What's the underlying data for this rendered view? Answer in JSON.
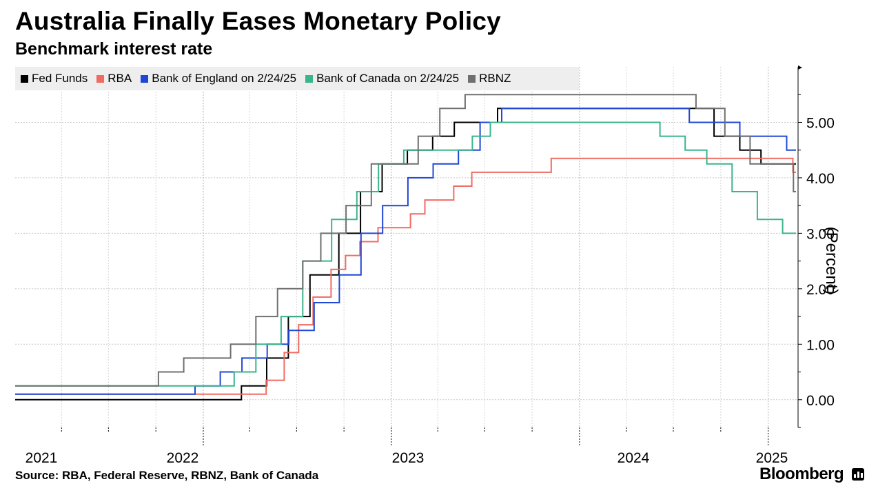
{
  "header": {
    "title": "Australia Finally Eases Monetary Policy",
    "subtitle": "Benchmark interest rate"
  },
  "footer": {
    "source": "Source: RBA, Federal Reserve, RBNZ, Bank of Canada",
    "brand": "Bloomberg",
    "brand_icon": "bloomberg-chart-icon"
  },
  "chart_data": {
    "type": "line",
    "line_style": "step",
    "title": "Australia Finally Eases Monetary Policy",
    "subtitle": "Benchmark interest rate",
    "ylabel": "(Percent)",
    "xlabel": "",
    "xlim": [
      "2021-01-01",
      "2025-02-28"
    ],
    "ylim": [
      -0.5,
      6.0
    ],
    "y_ticks": [
      0,
      1,
      2,
      3,
      4,
      5
    ],
    "y_tick_labels": [
      "0.00",
      "1.00",
      "2.00",
      "3.00",
      "4.00",
      "5.00"
    ],
    "x_tick_labels": [
      "2021",
      "2022",
      "2023",
      "2024",
      "2025"
    ],
    "grid": true,
    "legend_position": "top-left",
    "series": [
      {
        "name": "Fed Funds",
        "color": "#000000",
        "steps": [
          [
            "2021-01-01",
            0.0
          ],
          [
            "2022-03-16",
            0.25
          ],
          [
            "2022-05-04",
            0.75
          ],
          [
            "2022-06-15",
            1.5
          ],
          [
            "2022-07-27",
            2.25
          ],
          [
            "2022-09-21",
            3.0
          ],
          [
            "2022-11-02",
            3.75
          ],
          [
            "2022-12-14",
            4.25
          ],
          [
            "2023-02-01",
            4.5
          ],
          [
            "2023-03-22",
            4.75
          ],
          [
            "2023-05-03",
            5.0
          ],
          [
            "2023-07-26",
            5.25
          ],
          [
            "2024-09-18",
            4.75
          ],
          [
            "2024-11-07",
            4.5
          ],
          [
            "2024-12-18",
            4.25
          ],
          [
            "2025-02-24",
            4.25
          ]
        ]
      },
      {
        "name": "RBA",
        "color": "#f06b62",
        "steps": [
          [
            "2021-01-01",
            0.1
          ],
          [
            "2022-05-03",
            0.35
          ],
          [
            "2022-06-07",
            0.85
          ],
          [
            "2022-07-05",
            1.35
          ],
          [
            "2022-08-02",
            1.85
          ],
          [
            "2022-09-06",
            2.35
          ],
          [
            "2022-10-04",
            2.6
          ],
          [
            "2022-11-01",
            2.85
          ],
          [
            "2022-12-06",
            3.1
          ],
          [
            "2023-02-07",
            3.35
          ],
          [
            "2023-03-07",
            3.6
          ],
          [
            "2023-05-02",
            3.85
          ],
          [
            "2023-06-06",
            4.1
          ],
          [
            "2023-11-07",
            4.35
          ],
          [
            "2025-02-18",
            4.1
          ],
          [
            "2025-02-24",
            4.1
          ]
        ]
      },
      {
        "name": "Bank of England on 2/24/25",
        "color": "#1f47d6",
        "steps": [
          [
            "2021-01-01",
            0.1
          ],
          [
            "2021-12-16",
            0.25
          ],
          [
            "2022-02-03",
            0.5
          ],
          [
            "2022-03-17",
            0.75
          ],
          [
            "2022-05-05",
            1.0
          ],
          [
            "2022-06-16",
            1.25
          ],
          [
            "2022-08-04",
            1.75
          ],
          [
            "2022-09-22",
            2.25
          ],
          [
            "2022-11-03",
            3.0
          ],
          [
            "2022-12-15",
            3.5
          ],
          [
            "2023-02-02",
            4.0
          ],
          [
            "2023-03-23",
            4.25
          ],
          [
            "2023-05-11",
            4.5
          ],
          [
            "2023-06-22",
            5.0
          ],
          [
            "2023-08-03",
            5.25
          ],
          [
            "2024-08-01",
            5.0
          ],
          [
            "2024-11-07",
            4.75
          ],
          [
            "2025-02-06",
            4.5
          ],
          [
            "2025-02-24",
            4.5
          ]
        ]
      },
      {
        "name": "Bank of Canada on 2/24/25",
        "color": "#3ab58a",
        "steps": [
          [
            "2021-01-01",
            0.25
          ],
          [
            "2022-03-02",
            0.5
          ],
          [
            "2022-04-13",
            1.0
          ],
          [
            "2022-06-01",
            1.5
          ],
          [
            "2022-07-13",
            2.5
          ],
          [
            "2022-09-07",
            3.25
          ],
          [
            "2022-10-26",
            3.75
          ],
          [
            "2022-12-07",
            4.25
          ],
          [
            "2023-01-25",
            4.5
          ],
          [
            "2023-06-07",
            4.75
          ],
          [
            "2023-07-12",
            5.0
          ],
          [
            "2024-06-05",
            4.75
          ],
          [
            "2024-07-24",
            4.5
          ],
          [
            "2024-09-04",
            4.25
          ],
          [
            "2024-10-23",
            3.75
          ],
          [
            "2024-12-11",
            3.25
          ],
          [
            "2025-01-29",
            3.0
          ],
          [
            "2025-02-24",
            3.0
          ]
        ]
      },
      {
        "name": "RBNZ",
        "color": "#6f6f6f",
        "steps": [
          [
            "2021-01-01",
            0.25
          ],
          [
            "2021-10-06",
            0.5
          ],
          [
            "2021-11-24",
            0.75
          ],
          [
            "2022-02-23",
            1.0
          ],
          [
            "2022-04-13",
            1.5
          ],
          [
            "2022-05-25",
            2.0
          ],
          [
            "2022-07-13",
            2.5
          ],
          [
            "2022-08-17",
            3.0
          ],
          [
            "2022-10-05",
            3.5
          ],
          [
            "2022-11-23",
            4.25
          ],
          [
            "2023-02-22",
            4.75
          ],
          [
            "2023-04-05",
            5.25
          ],
          [
            "2023-05-24",
            5.5
          ],
          [
            "2024-08-14",
            5.25
          ],
          [
            "2024-10-09",
            4.75
          ],
          [
            "2024-11-27",
            4.25
          ],
          [
            "2025-02-19",
            3.75
          ],
          [
            "2025-02-24",
            3.75
          ]
        ]
      }
    ]
  }
}
